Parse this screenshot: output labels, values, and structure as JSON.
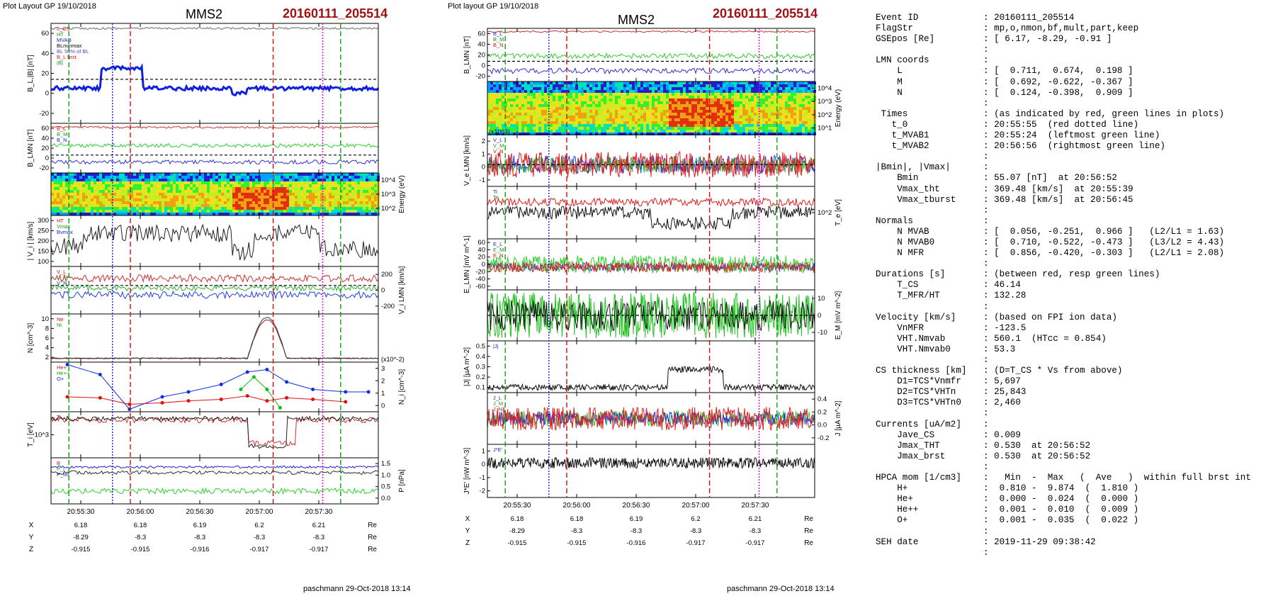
{
  "left": {
    "header": "Plot Layout GP 19/10/2018",
    "probe": "MMS2",
    "event": "20160111_205514",
    "footer": "paschmann 29-Oct-2018 13:14",
    "time_ticks": [
      "20:55:30",
      "20:56:00",
      "20:56:30",
      "20:57:00",
      "20:57:30"
    ],
    "ephemeris": [
      {
        "name": "X",
        "values": [
          "6.18",
          "6.18",
          "6.19",
          "6.2",
          "6.21"
        ],
        "unit": "Re"
      },
      {
        "name": "Y",
        "values": [
          "-8.29",
          "-8.3",
          "-8.3",
          "-8.3",
          "-8.3"
        ],
        "unit": "Re"
      },
      {
        "name": "Z",
        "values": [
          "-0.915",
          "-0.915",
          "-0.916",
          "-0.917",
          "-0.917"
        ],
        "unit": "Re"
      }
    ],
    "panels": [
      {
        "ylabel": "B_L,|B| [nT]",
        "ticks_left": [
          "60",
          "40",
          "20",
          "0",
          "-20"
        ],
        "ticks_right": [],
        "legend": [
          "L_CS",
          "HT",
          "MVAB",
          "BLminmax",
          "BL 50% of BL",
          "B_L brst",
          "|B|"
        ]
      },
      {
        "ylabel": "B_LMN [nT]",
        "ticks_left": [
          "60",
          "40",
          "20",
          "0",
          "-20"
        ],
        "ticks_right": [],
        "legend": [
          "B_L",
          "B_M",
          "B_N"
        ]
      },
      {
        "ylabel": "Energy (eV)",
        "ticks_left": [],
        "ticks_right": [
          "10^4",
          "10^3",
          "10^2"
        ],
        "legend": []
      },
      {
        "ylabel": "| V_i | [km/s]",
        "ticks_left": [
          "300",
          "250",
          "200",
          "150",
          "100"
        ],
        "ticks_right": [],
        "legend": [
          "HT",
          "Vmax",
          "Bvmax"
        ]
      },
      {
        "ylabel": "V_i LMN [km/s]",
        "ticks_left": [],
        "ticks_right": [
          "200",
          "0",
          "-200"
        ],
        "legend": [
          "V_L",
          "V_M",
          "V_N"
        ]
      },
      {
        "ylabel": "N [cm^-3]",
        "ticks_left": [
          "10",
          "8",
          "6",
          "4",
          "2"
        ],
        "ticks_right": [],
        "legend": [
          "Ne",
          "Ni"
        ]
      },
      {
        "ylabel": "N_i [cm^-3]",
        "ticks_left": [],
        "ticks_right": [
          "3",
          "2",
          "1",
          "0"
        ],
        "legend": [
          "He+",
          "He++",
          "O+"
        ],
        "scale": "(x10^-2)"
      },
      {
        "ylabel": "T_i [eV]",
        "ticks_left": [
          "10^3"
        ],
        "ticks_right": [],
        "legend": [
          "Ti"
        ]
      },
      {
        "ylabel": "P [nPa]",
        "ticks_left": [],
        "ticks_right": [
          "1.5",
          "1.0",
          "0.5",
          "0.0"
        ],
        "legend": [
          "B",
          "P_i",
          "P_tot"
        ]
      }
    ]
  },
  "middle": {
    "header": "Plot layout GP 19/10/2018",
    "probe": "MMS2",
    "event": "20160111_205514",
    "footer": "paschmann 29-Oct-2018 13:14",
    "time_ticks": [
      "20:55:30",
      "20:56:00",
      "20:56:30",
      "20:57:00",
      "20:57:30"
    ],
    "ephemeris": [
      {
        "name": "X",
        "values": [
          "6.18",
          "6.18",
          "6.19",
          "6.2",
          "6.21"
        ],
        "unit": "Re"
      },
      {
        "name": "Y",
        "values": [
          "-8.29",
          "-8.3",
          "-8.3",
          "-8.3",
          "-8.3"
        ],
        "unit": "Re"
      },
      {
        "name": "Z",
        "values": [
          "-0.915",
          "-0.915",
          "-0.916",
          "-0.917",
          "-0.917"
        ],
        "unit": "Re"
      }
    ],
    "panels": [
      {
        "ylabel": "B_LMN [nT]",
        "ticks_left": [
          "60",
          "40",
          "20",
          "0",
          "-20"
        ],
        "ticks_right": [],
        "legend": [
          "B_L",
          "B_M",
          "B_N"
        ]
      },
      {
        "ylabel": "Energy (eV)",
        "ticks_left": [],
        "ticks_right": [
          "10^4",
          "10^3",
          "10^2",
          "10^1"
        ],
        "legend": []
      },
      {
        "ylabel": "V_e LMN [km/s]",
        "ticks_left": [
          "2",
          "1",
          "0",
          "-1"
        ],
        "ticks_right": [],
        "legend": [
          "V_L",
          "V_M",
          "V_N"
        ],
        "scale": "(x10^3)"
      },
      {
        "ylabel": "T_e [eV]",
        "ticks_left": [],
        "ticks_right": [
          "10^2"
        ],
        "legend": [
          "Ti",
          "Te"
        ]
      },
      {
        "ylabel": "E_LMN [mV m^-1]",
        "ticks_left": [
          "60",
          "40",
          "20",
          "0",
          "-20",
          "-40",
          "-60"
        ],
        "ticks_right": [],
        "legend": [
          "E_L",
          "E_M",
          "E_N"
        ]
      },
      {
        "ylabel": "E_M [mV m^-2]",
        "ticks_left": [],
        "ticks_right": [
          "10",
          "0",
          "-10"
        ],
        "legend": []
      },
      {
        "ylabel": "|J| [µA m^-2]",
        "ticks_left": [
          "0.5",
          "0.4",
          "0.3",
          "0.2",
          "0.1"
        ],
        "ticks_right": [],
        "legend": [
          "|J|"
        ]
      },
      {
        "ylabel": "J [µA m^-2]",
        "ticks_left": [],
        "ticks_right": [
          "0.4",
          "0.2",
          "0.0",
          "-0.2"
        ],
        "legend": [
          "J_L",
          "J_M",
          "J_N"
        ]
      },
      {
        "ylabel": "J*E' [nW m^-3]",
        "ticks_left": [
          "1",
          "0",
          "-1",
          "-2"
        ],
        "ticks_right": [],
        "legend": [
          "J*E'"
        ]
      }
    ]
  },
  "info_lines": [
    {
      "k": "Event ID",
      "v": ": 20160111_205514"
    },
    {
      "k": "FlagStr",
      "v": ": mp,o,nmon,bf,mult,part,keep"
    },
    {
      "k": "GSEpos [Re]",
      "v": ": [ 6.17, -8.29, -0.91 ]"
    },
    {
      "k": "",
      "v": ":"
    },
    {
      "k": "LMN coords",
      "v": ":"
    },
    {
      "k": "    L",
      "v": ": [  0.711,  0.674,  0.198 ]"
    },
    {
      "k": "    M",
      "v": ": [  0.692, -0.622, -0.367 ]"
    },
    {
      "k": "    N",
      "v": ": [  0.124, -0.398,  0.909 ]"
    },
    {
      "k": "",
      "v": ":"
    },
    {
      "k": " Times",
      "v": ": (as indicated by red, green lines in plots)"
    },
    {
      "k": "   t_0",
      "v": ": 20:55:55  (red dotted line)"
    },
    {
      "k": "   t_MVAB1",
      "v": ": 20:55:24  (leftmost green line)"
    },
    {
      "k": "   t_MVAB2",
      "v": ": 20:56:56  (rightmost green line)"
    },
    {
      "k": "",
      "v": ":"
    },
    {
      "k": "|Bmin|, |Vmax|",
      "v": ":"
    },
    {
      "k": "    Bmin",
      "v": ": 55.07 [nT]  at 20:56:52"
    },
    {
      "k": "    Vmax_tht",
      "v": ": 369.48 [km/s]  at 20:55:39"
    },
    {
      "k": "    Vmax_tburst",
      "v": ": 369.48 [km/s]  at 20:56:45"
    },
    {
      "k": "",
      "v": ":"
    },
    {
      "k": "Normals",
      "v": ":"
    },
    {
      "k": "    N MVAB",
      "v": ": [  0.056, -0.251,  0.966 ]   (L2/L1 = 1.63)"
    },
    {
      "k": "    N MVAB0",
      "v": ": [  0.710, -0.522, -0.473 ]   (L3/L2 = 4.43)"
    },
    {
      "k": "    N MFR",
      "v": ": [  0.856, -0.420, -0.303 ]   (L2/L1 = 2.08)"
    },
    {
      "k": "",
      "v": ":"
    },
    {
      "k": "Durations [s]",
      "v": ": (between red, resp green lines)"
    },
    {
      "k": "    T_CS",
      "v": ": 46.14"
    },
    {
      "k": "    T_MFR/HT",
      "v": ": 132.28"
    },
    {
      "k": "",
      "v": ":"
    },
    {
      "k": "Velocity [km/s]",
      "v": ": (based on FPI ion data)"
    },
    {
      "k": "    VnMFR",
      "v": ": -123.5"
    },
    {
      "k": "    VHT.Nmvab",
      "v": ": 560.1  (HTcc = 0.854)"
    },
    {
      "k": "    VHT.Nmvab0",
      "v": ": 53.3"
    },
    {
      "k": "",
      "v": ":"
    },
    {
      "k": "CS thickness [km]",
      "v": ": (D=T_CS * Vs from above)"
    },
    {
      "k": "    D1=TCS*Vnmfr",
      "v": ": 5,697"
    },
    {
      "k": "    D2=TCS*VHTn",
      "v": ": 25,843"
    },
    {
      "k": "    D3=TCS*VHTn0",
      "v": ": 2,460"
    },
    {
      "k": "",
      "v": ":"
    },
    {
      "k": "Currents [uA/m2]",
      "v": ":"
    },
    {
      "k": "    Jave_CS",
      "v": ": 0.009"
    },
    {
      "k": "    Jmax_THT",
      "v": ": 0.530  at 20:56:52"
    },
    {
      "k": "    Jmax_brst",
      "v": ": 0.530  at 20:56:52"
    },
    {
      "k": "",
      "v": ":"
    },
    {
      "k": "HPCA mom [1/cm3]",
      "v": ":   Min  -  Max   (  Ave   )  within full brst int"
    },
    {
      "k": "    H+",
      "v": ":  0.810 -  9.874  (  1.810 )"
    },
    {
      "k": "    He+",
      "v": ":  0.000 -  0.024  (  0.000 )"
    },
    {
      "k": "    He++",
      "v": ":  0.001 -  0.010  (  0.009 )"
    },
    {
      "k": "    O+",
      "v": ":  0.001 -  0.035  (  0.022 )"
    },
    {
      "k": "",
      "v": ":"
    },
    {
      "k": "SEH date",
      "v": ": 2019-11-29 09:38:42"
    },
    {
      "k": "",
      "v": ":"
    }
  ],
  "chart_data": [
    {
      "type": "line",
      "title": "MMS2 20160111_205514",
      "time_range": [
        "20:55:15",
        "20:58:00"
      ],
      "x_ticks": [
        "20:55:30",
        "20:56:00",
        "20:56:30",
        "20:57:00",
        "20:57:30"
      ],
      "series": [
        {
          "name": "|B|",
          "x": [
            "20:55:15",
            "20:55:40",
            "20:56:05",
            "20:56:30",
            "20:56:52",
            "20:57:15",
            "20:57:40",
            "20:58:00"
          ],
          "values": [
            57,
            58,
            56,
            57,
            55,
            58,
            57,
            57
          ]
        },
        {
          "name": "B_L brst",
          "x": [
            "20:55:15",
            "20:55:30",
            "20:55:40",
            "20:55:55",
            "20:56:10",
            "20:56:30",
            "20:56:52",
            "20:57:10",
            "20:57:30",
            "20:58:00"
          ],
          "values": [
            -17,
            -12,
            8,
            -10,
            -14,
            -13,
            -17,
            -8,
            -5,
            -6
          ]
        },
        {
          "name": "Ne",
          "x": [
            "20:55:15",
            "20:56:00",
            "20:56:40",
            "20:56:48",
            "20:56:55",
            "20:57:05",
            "20:57:15",
            "20:58:00"
          ],
          "values": [
            0.8,
            0.9,
            1.0,
            4.0,
            9.5,
            7.0,
            1.0,
            0.8
          ]
        },
        {
          "name": "H+ (HPCA)",
          "x": [
            "20:55:15",
            "20:58:00"
          ],
          "values": [
            0.81,
            9.874
          ]
        },
        {
          "name": "He+",
          "x": [
            "20:55:20",
            "20:55:40",
            "20:56:00",
            "20:56:20",
            "20:56:40",
            "20:56:50",
            "20:57:00",
            "20:57:20",
            "20:57:40"
          ],
          "values": [
            3.1,
            1.5,
            0.1,
            1.1,
            1.3,
            2.9,
            2.2,
            1.0,
            0.9
          ]
        },
        {
          "name": "O+",
          "x": [
            "20:55:20",
            "20:55:40",
            "20:56:00",
            "20:56:20",
            "20:56:40",
            "20:56:50",
            "20:57:00",
            "20:57:20",
            "20:57:40"
          ],
          "values": [
            0.7,
            0.6,
            0.1,
            0.5,
            0.4,
            0.9,
            0.3,
            0.3,
            0.2
          ]
        }
      ],
      "markers": {
        "red_dotted": "20:55:55",
        "green_dashed": [
          "20:55:24",
          "20:56:56"
        ],
        "magenta_dotted": "20:56:52"
      }
    },
    {
      "type": "line",
      "title": "MMS2 20160111_205514",
      "time_range": [
        "20:55:15",
        "20:58:00"
      ],
      "x_ticks": [
        "20:55:30",
        "20:56:00",
        "20:56:30",
        "20:57:00",
        "20:57:30"
      ],
      "series": [
        {
          "name": "|J|",
          "x": [
            "20:55:15",
            "20:56:00",
            "20:56:45",
            "20:56:52",
            "20:57:10",
            "20:58:00"
          ],
          "values": [
            0.05,
            0.1,
            0.25,
            0.53,
            0.2,
            0.05
          ]
        },
        {
          "name": "J*E'",
          "x": [
            "20:55:15",
            "20:55:40",
            "20:56:00",
            "20:56:52",
            "20:57:20",
            "20:58:00"
          ],
          "values": [
            0,
            -1.2,
            0.3,
            -0.8,
            -1.6,
            0
          ]
        }
      ]
    }
  ]
}
